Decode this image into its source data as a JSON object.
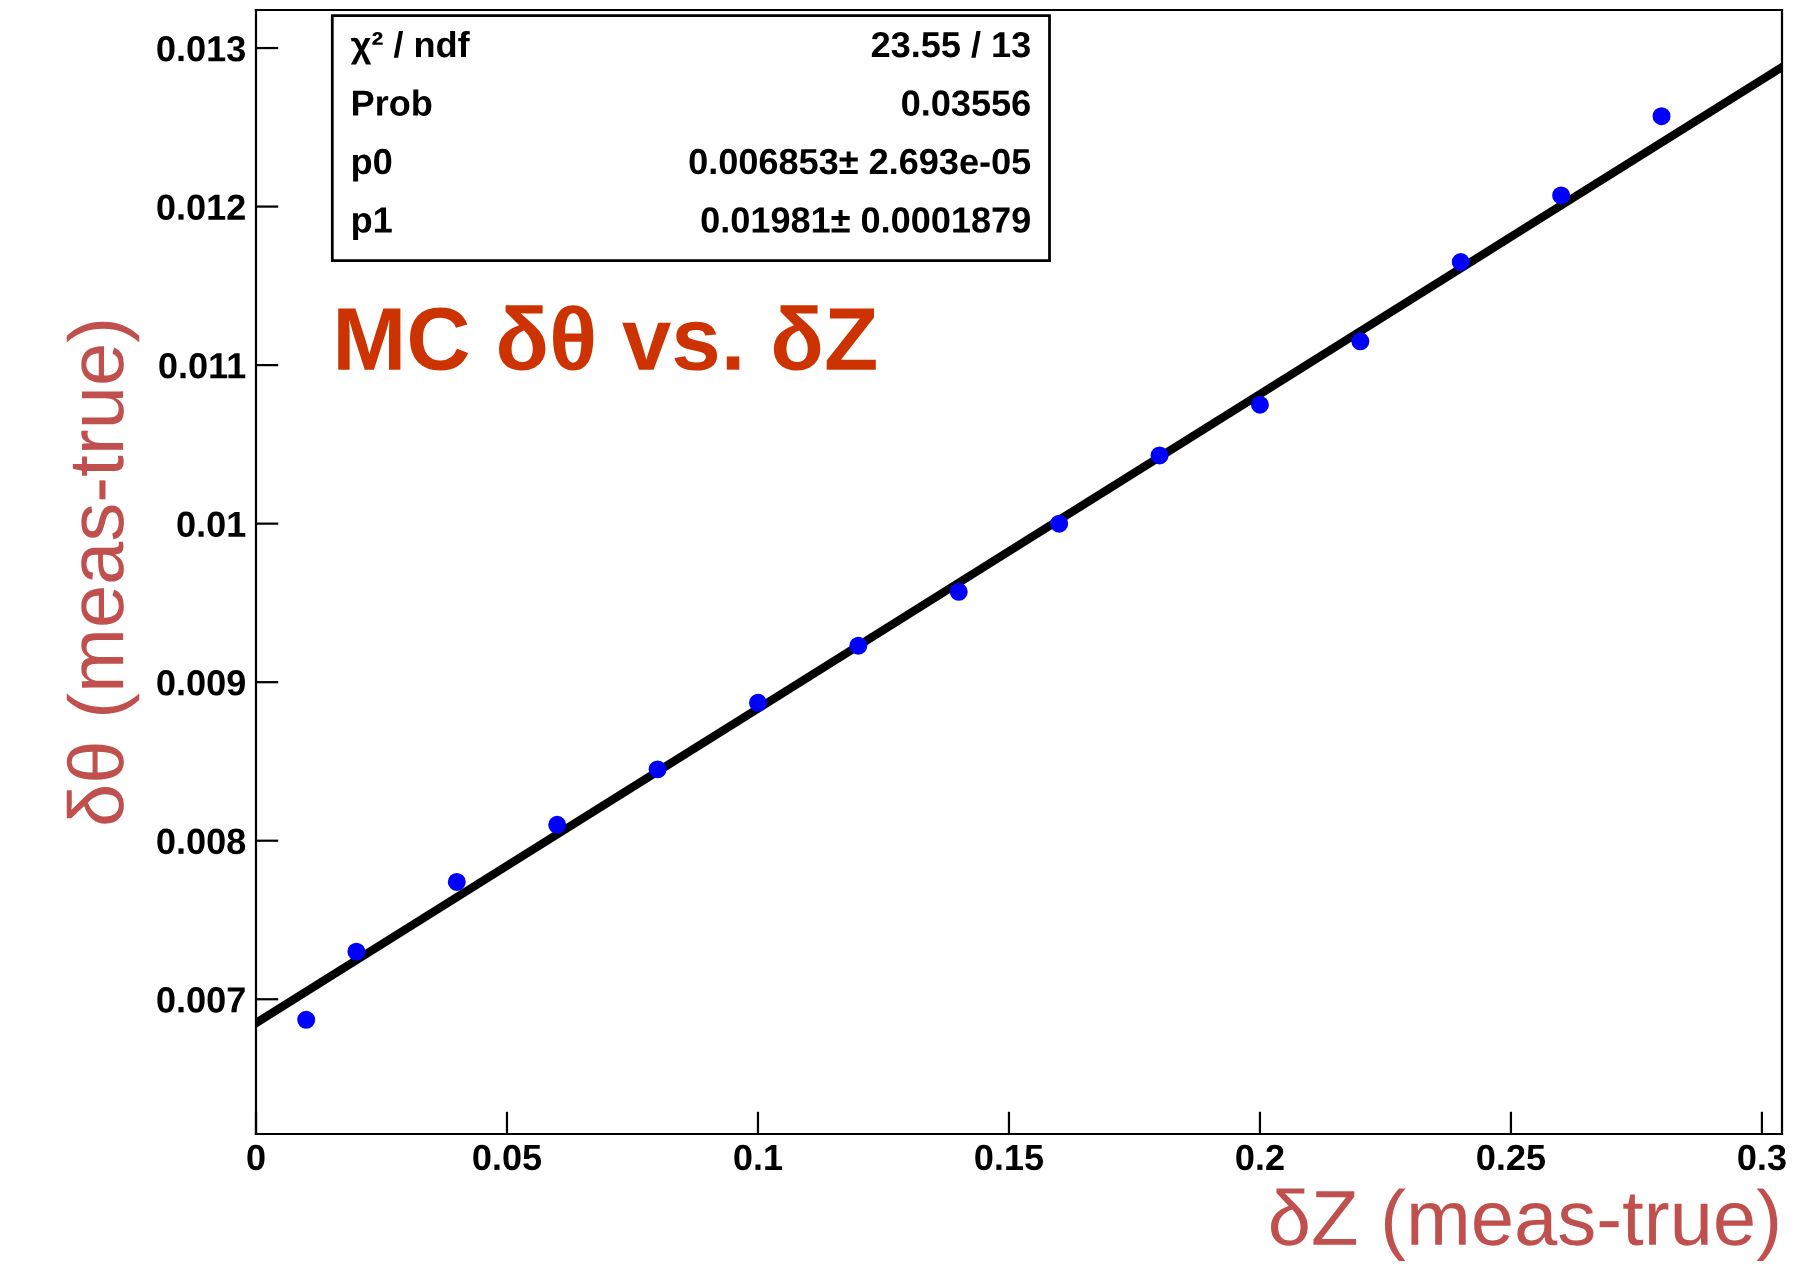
{
  "chart_data": {
    "type": "scatter",
    "title": "MC δθ vs. δZ",
    "xlabel": "δZ (meas-true)",
    "ylabel": "δθ (meas-true)",
    "annotations": [
      "χ² / ndf",
      "23.55 / 13",
      "Prob",
      "0.03556",
      "p0",
      "0.006853± 2.693e-05",
      "p1",
      "0.01981± 0.0001879"
    ],
    "xlim": [
      0,
      0.304
    ],
    "ylim": [
      0.00615,
      0.01324
    ],
    "xticks": [
      0,
      0.05,
      0.1,
      0.15,
      0.2,
      0.25,
      0.3
    ],
    "yticks": [
      0.007,
      0.008,
      0.009,
      0.01,
      0.011,
      0.012,
      0.013
    ],
    "grid": false,
    "series": [
      {
        "type": "line",
        "color": "#000000",
        "x": [
          0,
          0.304
        ],
        "values": [
          0.00685,
          0.01288
        ],
        "marker": "none",
        "line_style": "solid"
      },
      {
        "color": "#0000ff",
        "marker": "circle",
        "x": [
          0.01,
          0.02,
          0.04,
          0.06,
          0.08,
          0.1,
          0.12,
          0.14,
          0.16,
          0.18,
          0.2,
          0.22,
          0.24,
          0.26,
          0.28
        ],
        "values": [
          0.00687,
          0.0073,
          0.00774,
          0.0081,
          0.00845,
          0.00887,
          0.00923,
          0.00957,
          0.01,
          0.01043,
          0.01075,
          0.01115,
          0.01165,
          0.01207,
          0.01257
        ]
      }
    ]
  }
}
